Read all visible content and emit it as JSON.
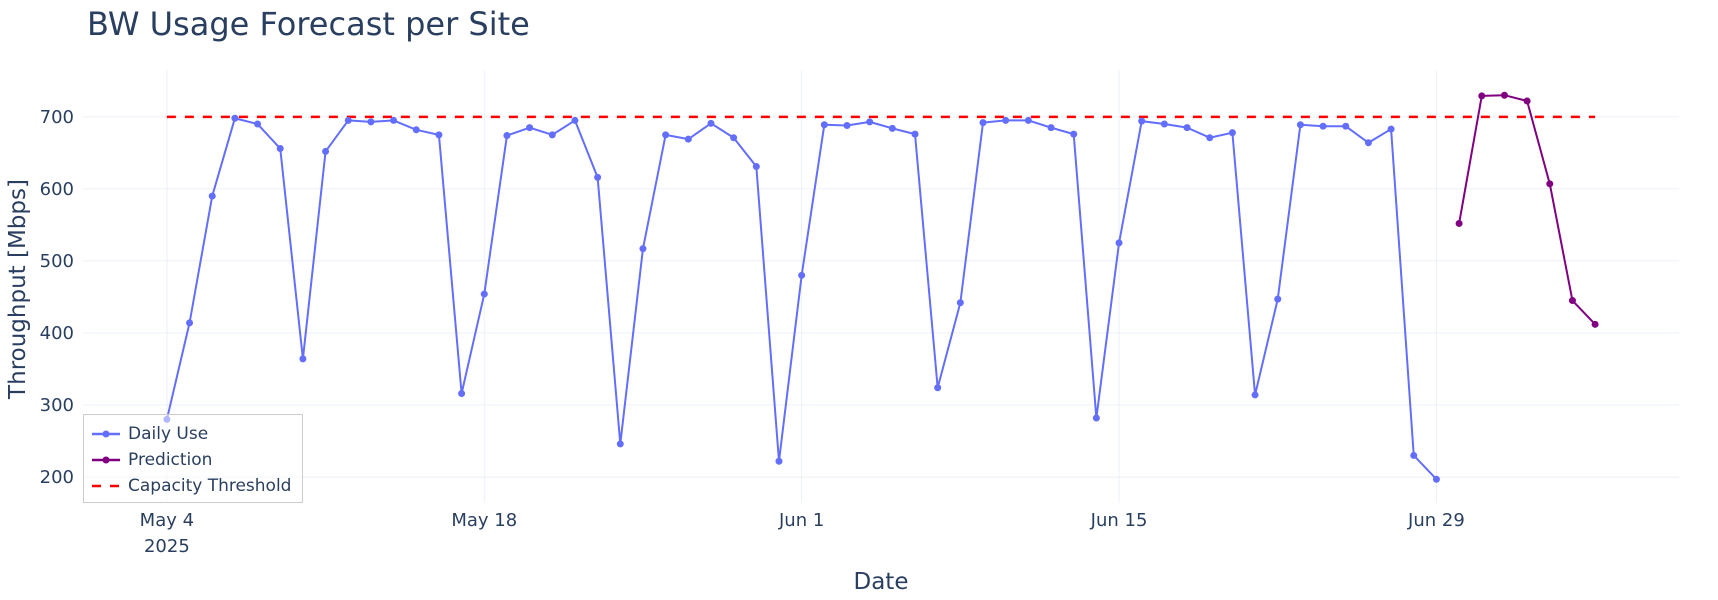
{
  "chart_data": {
    "type": "line",
    "title": "BW Usage Forecast per Site",
    "xlabel": "Date",
    "ylabel": "Throughput [Mbps]",
    "x_start_date": "2025-05-04",
    "x_ticks": [
      {
        "label": "May 4",
        "sublabel": "2025",
        "day": 0
      },
      {
        "label": "May 18",
        "sublabel": "",
        "day": 14
      },
      {
        "label": "Jun 1",
        "sublabel": "",
        "day": 28
      },
      {
        "label": "Jun 15",
        "sublabel": "",
        "day": 42
      },
      {
        "label": "Jun 29",
        "sublabel": "",
        "day": 56
      }
    ],
    "y_ticks": [
      200,
      300,
      400,
      500,
      600,
      700
    ],
    "ylim": [
      164,
      765
    ],
    "xlim_days": [
      -3.7,
      66.7
    ],
    "grid": true,
    "legend_position": "bottom-left inside",
    "series": [
      {
        "name": "Daily Use",
        "color": "#636efa",
        "mode": "lines+markers",
        "start_day": 0,
        "x_range": "May 4 – Jun 29, 2025",
        "values": [
          280,
          414,
          590,
          698,
          690,
          656,
          364,
          652,
          695,
          693,
          695,
          682,
          675,
          316,
          454,
          674,
          685,
          675,
          695,
          616,
          246,
          517,
          675,
          669,
          691,
          671,
          631,
          222,
          480,
          689,
          688,
          693,
          684,
          676,
          324,
          442,
          692,
          695,
          695,
          685,
          676,
          282,
          525,
          694,
          690,
          685,
          671,
          678,
          314,
          447,
          689,
          687,
          687,
          664,
          683,
          230,
          197
        ]
      },
      {
        "name": "Prediction",
        "color": "#800080",
        "mode": "lines+markers",
        "start_day": 57,
        "x_range": "Jun 30 – Jul 6, 2025",
        "values": [
          552,
          729,
          730,
          722,
          607,
          445,
          412
        ]
      },
      {
        "name": "Capacity Threshold",
        "color": "#ff0000",
        "mode": "dashed-line",
        "start_day": 0,
        "end_day": 63,
        "value": 700
      }
    ]
  },
  "legend": {
    "items": [
      {
        "label": "Daily Use",
        "color": "#636efa",
        "style": "line-marker"
      },
      {
        "label": "Prediction",
        "color": "#800080",
        "style": "line-marker"
      },
      {
        "label": "Capacity Threshold",
        "color": "#ff0000",
        "style": "dash"
      }
    ]
  }
}
